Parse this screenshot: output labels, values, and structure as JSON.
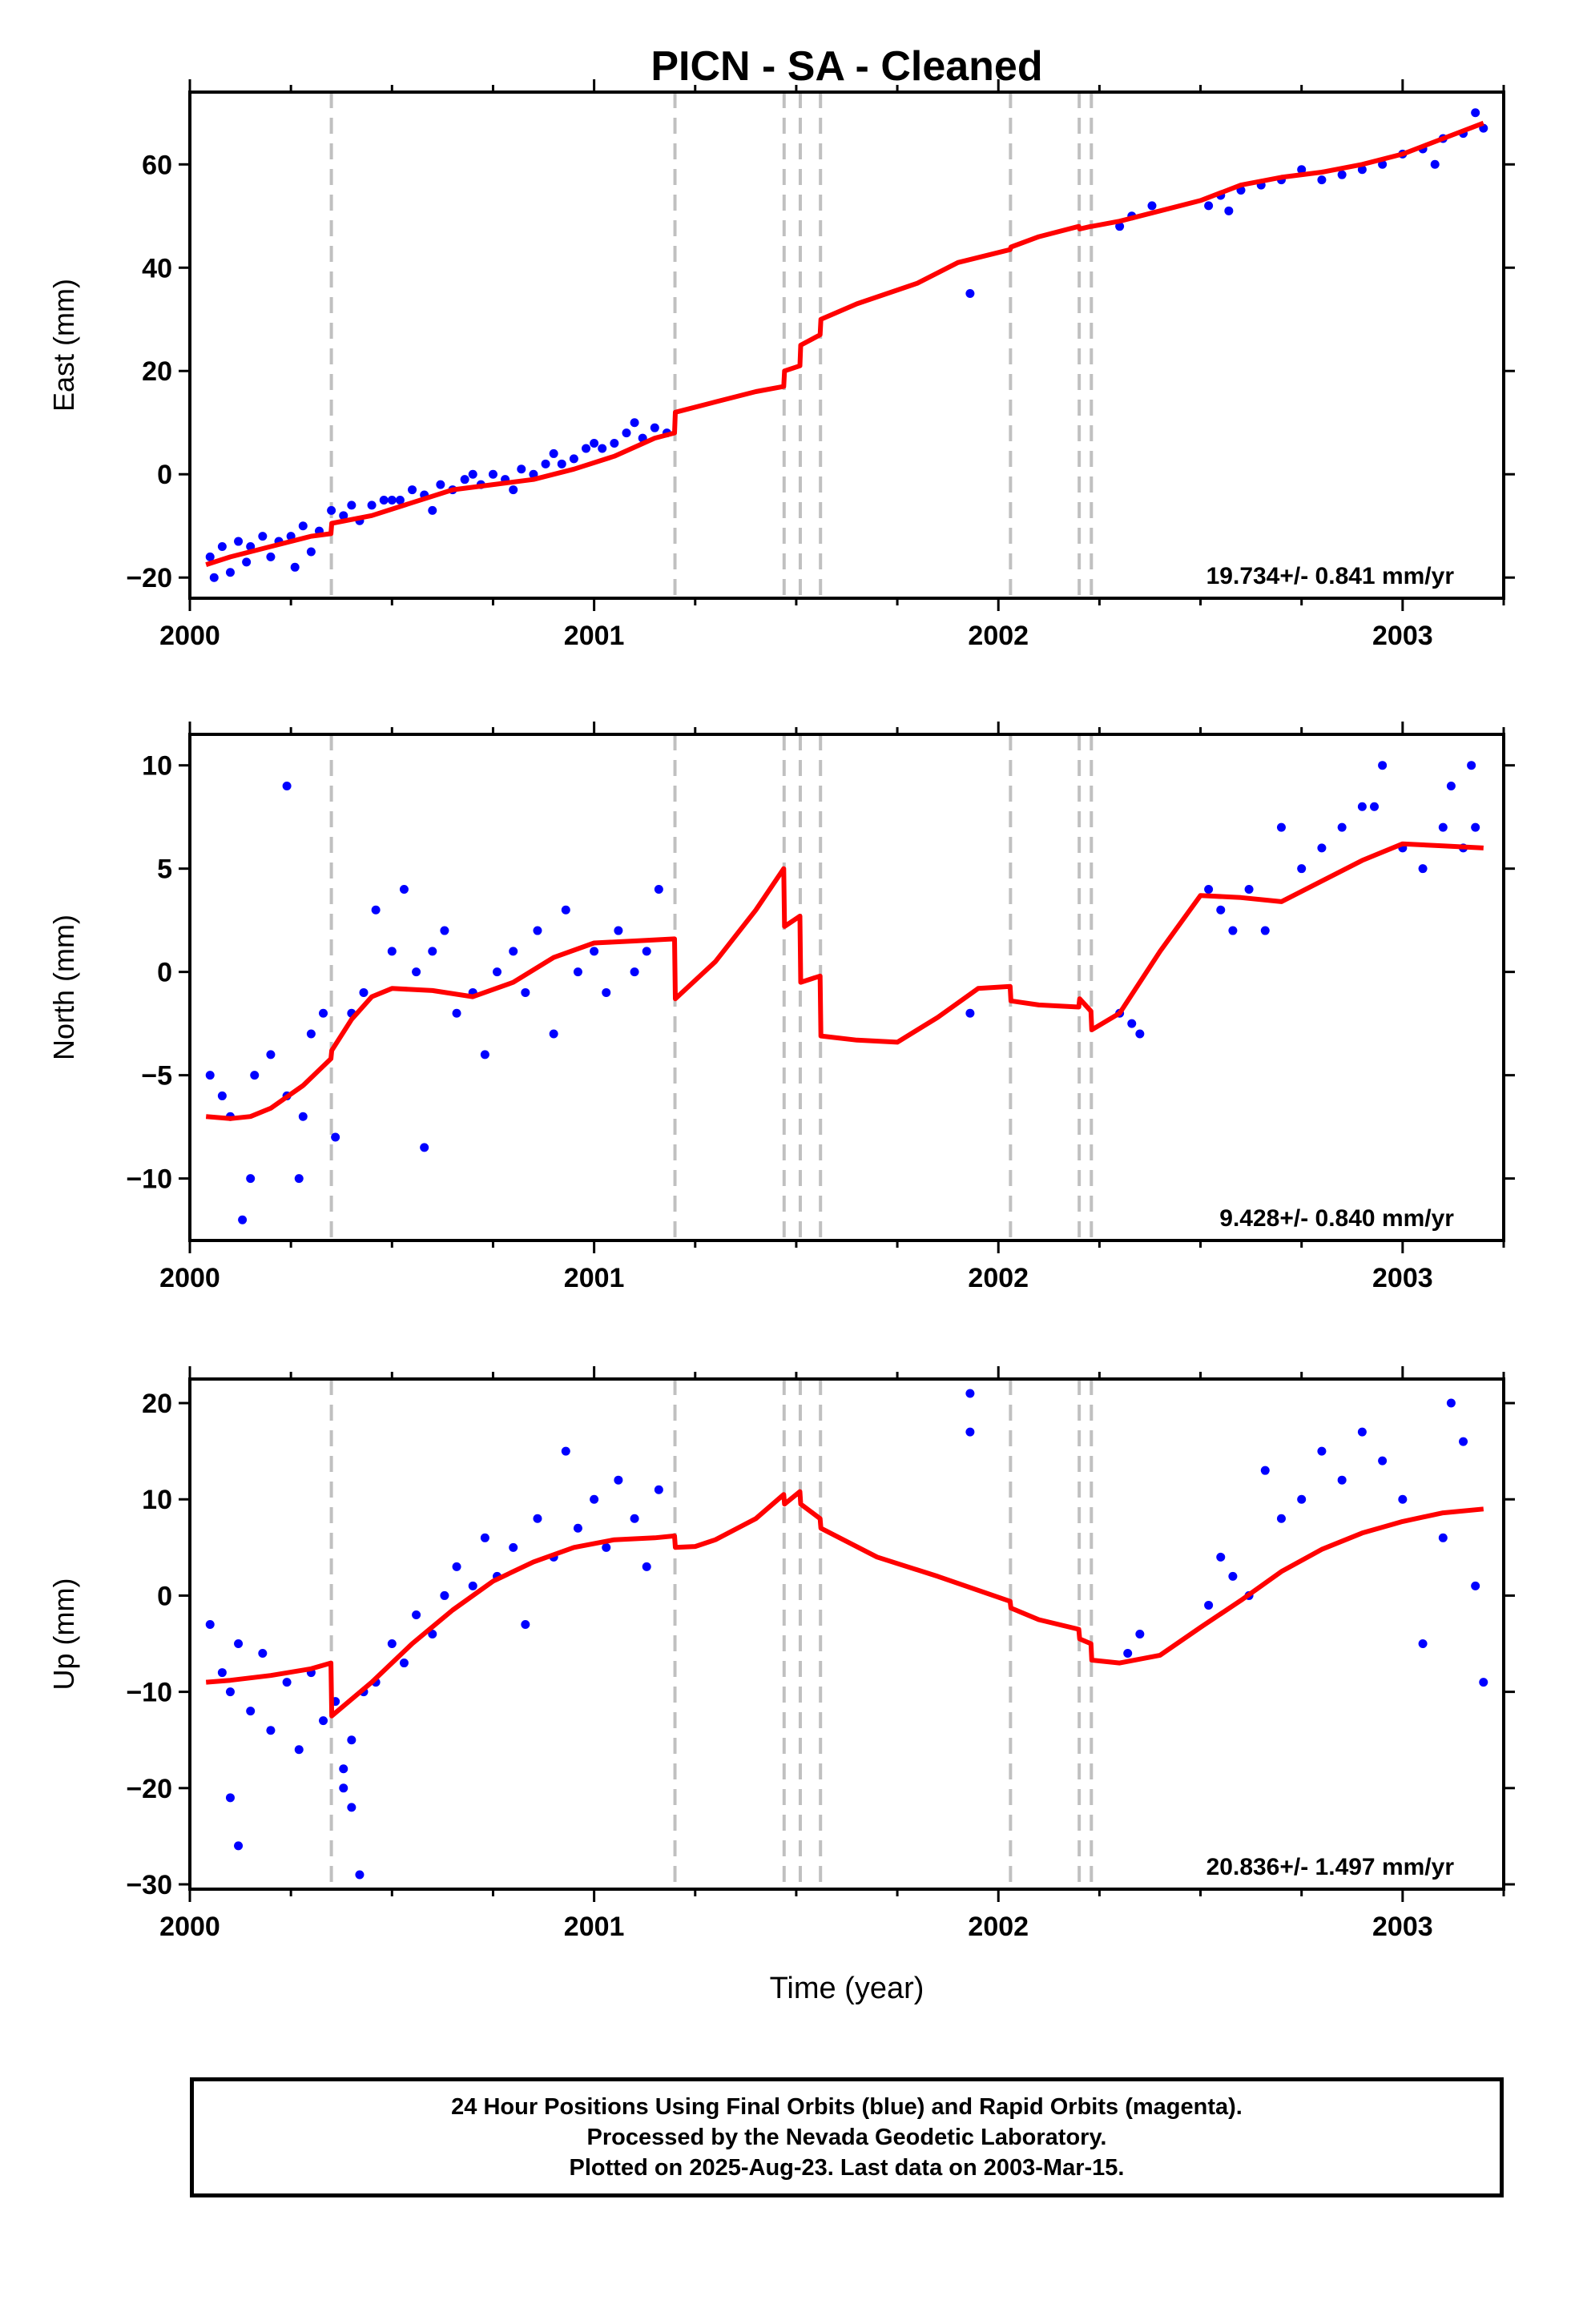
{
  "title": "PICN  - SA - Cleaned",
  "xlabel": "Time (year)",
  "footer": {
    "line1": "24 Hour Positions Using Final Orbits (blue) and Rapid Orbits (magenta).",
    "line2": "Processed by the Nevada Geodetic Laboratory.",
    "line3": "Plotted on 2025-Aug-23. Last data on 2003-Mar-15."
  },
  "colors": {
    "data": "#0000ff",
    "model": "#ff0000",
    "steps": "#c0c0c0",
    "axes": "#000000"
  },
  "chart_data": [
    {
      "type": "scatter",
      "panel": "East",
      "ylabel": "East (mm)",
      "xlim": [
        2000,
        2003.25
      ],
      "ylim": [
        -24,
        74
      ],
      "xticks": [
        2000,
        2001,
        2002,
        2003
      ],
      "yticks": [
        -20,
        0,
        20,
        40,
        60
      ],
      "rate_label": "19.734+/- 0.841 mm/yr",
      "steps": [
        2000.35,
        2001.2,
        2001.47,
        2001.51,
        2001.56,
        2002.03,
        2002.2,
        2002.23
      ],
      "series": [
        {
          "kind": "points",
          "x": [
            2000.05,
            2000.08,
            2000.12,
            2000.15,
            2000.18,
            2000.22,
            2000.25,
            2000.28,
            2000.32,
            2000.35,
            2000.38,
            2000.42,
            2000.45,
            2000.48,
            2000.52,
            2000.55,
            2000.58,
            2000.62,
            2000.65,
            2000.68,
            2000.72,
            2000.75,
            2000.78,
            2000.82,
            2000.85,
            2000.88,
            2000.92,
            2000.95,
            2000.98,
            2001.02,
            2001.05,
            2001.08,
            2001.12,
            2001.15,
            2001.18,
            2001.93,
            2002.3,
            2002.33,
            2002.38,
            2002.52,
            2002.55,
            2002.6,
            2002.65,
            2002.7,
            2002.8,
            2002.85,
            2002.9,
            2002.95,
            2003.0,
            2003.05,
            2003.1,
            2003.15,
            2003.2,
            2000.06,
            2000.1,
            2000.14,
            2000.2,
            2000.26,
            2000.3,
            2000.4,
            2000.5,
            2000.6,
            2000.7,
            2000.8,
            2000.9,
            2001.0,
            2001.1,
            2002.57,
            2002.75,
            2003.08,
            2003.18
          ],
          "y": [
            -16,
            -14,
            -13,
            -14,
            -12,
            -13,
            -12,
            -10,
            -11,
            -7,
            -8,
            -9,
            -6,
            -5,
            -5,
            -3,
            -4,
            -2,
            -3,
            -1,
            -2,
            0,
            -1,
            1,
            0,
            2,
            2,
            3,
            5,
            5,
            6,
            8,
            7,
            9,
            8,
            35,
            48,
            50,
            52,
            52,
            54,
            55,
            56,
            57,
            57,
            58,
            59,
            60,
            62,
            63,
            65,
            66,
            67,
            -20,
            -19,
            -17,
            -16,
            -18,
            -15,
            -6,
            -5,
            -7,
            0,
            -3,
            4,
            6,
            10,
            51,
            59,
            60,
            70
          ]
        },
        {
          "kind": "model",
          "x": [
            2000.04,
            2000.1,
            2000.2,
            2000.3,
            2000.349,
            2000.351,
            2000.45,
            2000.55,
            2000.65,
            2000.75,
            2000.85,
            2000.95,
            2001.05,
            2001.15,
            2001.199,
            2001.201,
            2001.3,
            2001.4,
            2001.469,
            2001.471,
            2001.509,
            2001.511,
            2001.559,
            2001.561,
            2001.65,
            2001.8,
            2001.9,
            2002.029,
            2002.031,
            2002.1,
            2002.199,
            2002.201,
            2002.229,
            2002.231,
            2002.3,
            2002.4,
            2002.5,
            2002.6,
            2002.7,
            2002.8,
            2002.9,
            2003.0,
            2003.1,
            2003.2
          ],
          "y": [
            -17.5,
            -16,
            -14,
            -12,
            -11.5,
            -9.5,
            -8,
            -5.5,
            -3,
            -2,
            -1,
            1,
            3.5,
            7,
            8,
            12,
            14,
            16,
            17,
            20,
            21,
            25,
            27,
            30,
            33,
            37,
            41,
            43.5,
            44,
            46,
            48,
            47.5,
            48,
            48,
            49,
            51,
            53,
            56,
            57.5,
            58.5,
            60,
            62,
            65,
            68
          ]
        }
      ]
    },
    {
      "type": "scatter",
      "panel": "North",
      "ylabel": "North (mm)",
      "xlim": [
        2000,
        2003.25
      ],
      "ylim": [
        -13,
        11.5
      ],
      "xticks": [
        2000,
        2001,
        2002,
        2003
      ],
      "yticks": [
        -10,
        -5,
        0,
        5,
        10
      ],
      "rate_label": "9.428+/- 0.840 mm/yr",
      "steps": [
        2000.35,
        2001.2,
        2001.47,
        2001.51,
        2001.56,
        2002.03,
        2002.2,
        2002.23
      ],
      "series": [
        {
          "kind": "points",
          "x": [
            2000.05,
            2000.08,
            2000.1,
            2000.13,
            2000.16,
            2000.2,
            2000.24,
            2000.27,
            2000.3,
            2000.33,
            2000.36,
            2000.4,
            2000.43,
            2000.46,
            2000.5,
            2000.53,
            2000.56,
            2000.6,
            2000.63,
            2000.66,
            2000.7,
            2000.73,
            2000.76,
            2000.8,
            2000.83,
            2000.86,
            2000.9,
            2000.93,
            2000.96,
            2001.0,
            2001.03,
            2001.06,
            2001.1,
            2001.13,
            2001.16,
            2000.24,
            2000.15,
            2000.28,
            2000.58,
            2001.93,
            2002.3,
            2002.33,
            2002.35,
            2002.52,
            2002.55,
            2002.58,
            2002.62,
            2002.66,
            2002.7,
            2002.75,
            2002.8,
            2002.85,
            2002.9,
            2002.95,
            2003.0,
            2003.05,
            2003.1,
            2003.15,
            2003.18,
            2002.93,
            2003.17,
            2003.12
          ],
          "y": [
            -5,
            -6,
            -7,
            -12,
            -5,
            -4,
            -6,
            -10,
            -3,
            -2,
            -8,
            -2,
            -1,
            3,
            1,
            4,
            0,
            1,
            2,
            -2,
            -1,
            -4,
            0,
            1,
            -1,
            2,
            -3,
            3,
            0,
            1,
            -1,
            2,
            0,
            1,
            4,
            9,
            -10,
            -7,
            -8.5,
            -2,
            -2,
            -2.5,
            -3,
            4,
            3,
            2,
            4,
            2,
            7,
            5,
            6,
            7,
            8,
            10,
            6,
            5,
            7,
            6,
            7,
            8,
            10,
            9
          ],
          "note": "representative subset"
        },
        {
          "kind": "model",
          "x": [
            2000.04,
            2000.1,
            2000.15,
            2000.2,
            2000.28,
            2000.349,
            2000.351,
            2000.4,
            2000.45,
            2000.5,
            2000.6,
            2000.7,
            2000.8,
            2000.9,
            2001.0,
            2001.1,
            2001.199,
            2001.201,
            2001.3,
            2001.4,
            2001.469,
            2001.471,
            2001.509,
            2001.511,
            2001.559,
            2001.561,
            2001.65,
            2001.75,
            2001.85,
            2001.95,
            2002.029,
            2002.031,
            2002.1,
            2002.199,
            2002.201,
            2002.229,
            2002.231,
            2002.3,
            2002.4,
            2002.5,
            2002.6,
            2002.7,
            2002.8,
            2002.9,
            2003.0,
            2003.1,
            2003.2
          ],
          "y": [
            -7,
            -7.1,
            -7,
            -6.6,
            -5.5,
            -4.2,
            -3.8,
            -2.3,
            -1.2,
            -0.8,
            -0.9,
            -1.2,
            -0.5,
            0.7,
            1.4,
            1.5,
            1.6,
            -1.3,
            0.5,
            3,
            5,
            2.2,
            2.7,
            -0.5,
            -0.2,
            -3.1,
            -3.3,
            -3.4,
            -2.2,
            -0.8,
            -0.7,
            -1.4,
            -1.6,
            -1.7,
            -1.3,
            -1.9,
            -2.8,
            -2,
            1,
            3.7,
            3.6,
            3.4,
            4.4,
            5.4,
            6.2,
            6.1,
            6
          ]
        }
      ]
    },
    {
      "type": "scatter",
      "panel": "Up",
      "ylabel": "Up (mm)",
      "xlim": [
        2000,
        2003.25
      ],
      "ylim": [
        -30.5,
        22.5
      ],
      "xticks": [
        2000,
        2001,
        2002,
        2003
      ],
      "yticks": [
        -30,
        -20,
        -10,
        0,
        10,
        20
      ],
      "rate_label": "20.836+/- 1.497 mm/yr",
      "steps": [
        2000.35,
        2001.2,
        2001.47,
        2001.51,
        2001.56,
        2002.03,
        2002.2,
        2002.23
      ],
      "series": [
        {
          "kind": "points",
          "x": [
            2000.05,
            2000.08,
            2000.1,
            2000.12,
            2000.15,
            2000.18,
            2000.2,
            2000.24,
            2000.27,
            2000.3,
            2000.33,
            2000.36,
            2000.38,
            2000.4,
            2000.43,
            2000.46,
            2000.5,
            2000.53,
            2000.56,
            2000.6,
            2000.63,
            2000.66,
            2000.7,
            2000.73,
            2000.76,
            2000.8,
            2000.83,
            2000.86,
            2000.9,
            2000.93,
            2000.96,
            2001.0,
            2001.03,
            2001.06,
            2001.1,
            2001.13,
            2001.16,
            2000.1,
            2000.12,
            2000.38,
            2000.4,
            2000.42,
            2001.93,
            2001.93,
            2002.35,
            2002.32,
            2002.52,
            2002.55,
            2002.58,
            2002.62,
            2002.66,
            2002.7,
            2002.75,
            2002.8,
            2002.85,
            2002.9,
            2002.95,
            2003.0,
            2003.05,
            2003.1,
            2003.15,
            2003.18,
            2003.2,
            2003.12
          ],
          "y": [
            -3,
            -8,
            -10,
            -5,
            -12,
            -6,
            -14,
            -9,
            -16,
            -8,
            -13,
            -11,
            -18,
            -15,
            -10,
            -9,
            -5,
            -7,
            -2,
            -4,
            0,
            3,
            1,
            6,
            2,
            5,
            -3,
            8,
            4,
            15,
            7,
            10,
            5,
            12,
            8,
            3,
            11,
            -21,
            -26,
            -20,
            -22,
            -29,
            21,
            17,
            -4,
            -6,
            -1,
            4,
            2,
            0,
            13,
            8,
            10,
            15,
            12,
            17,
            14,
            10,
            -5,
            6,
            16,
            1,
            -9,
            20
          ]
        },
        {
          "kind": "model",
          "x": [
            2000.04,
            2000.1,
            2000.2,
            2000.3,
            2000.349,
            2000.351,
            2000.45,
            2000.55,
            2000.65,
            2000.75,
            2000.85,
            2000.95,
            2001.05,
            2001.15,
            2001.199,
            2001.201,
            2001.25,
            2001.3,
            2001.4,
            2001.469,
            2001.471,
            2001.509,
            2001.511,
            2001.559,
            2001.561,
            2001.7,
            2001.85,
            2002.029,
            2002.031,
            2002.1,
            2002.199,
            2002.201,
            2002.229,
            2002.231,
            2002.3,
            2002.4,
            2002.5,
            2002.6,
            2002.7,
            2002.8,
            2002.9,
            2003.0,
            2003.1,
            2003.2
          ],
          "y": [
            -9,
            -8.8,
            -8.3,
            -7.6,
            -7,
            -12.5,
            -9,
            -5,
            -1.5,
            1.5,
            3.5,
            5,
            5.8,
            6,
            6.2,
            5,
            5.1,
            5.8,
            8,
            10.5,
            9.5,
            10.8,
            9.5,
            8,
            7,
            4,
            2,
            -0.6,
            -1.3,
            -2.5,
            -3.5,
            -4.5,
            -5,
            -6.7,
            -7,
            -6.2,
            -3.3,
            -0.5,
            2.5,
            4.8,
            6.5,
            7.7,
            8.6,
            9
          ]
        }
      ]
    }
  ]
}
